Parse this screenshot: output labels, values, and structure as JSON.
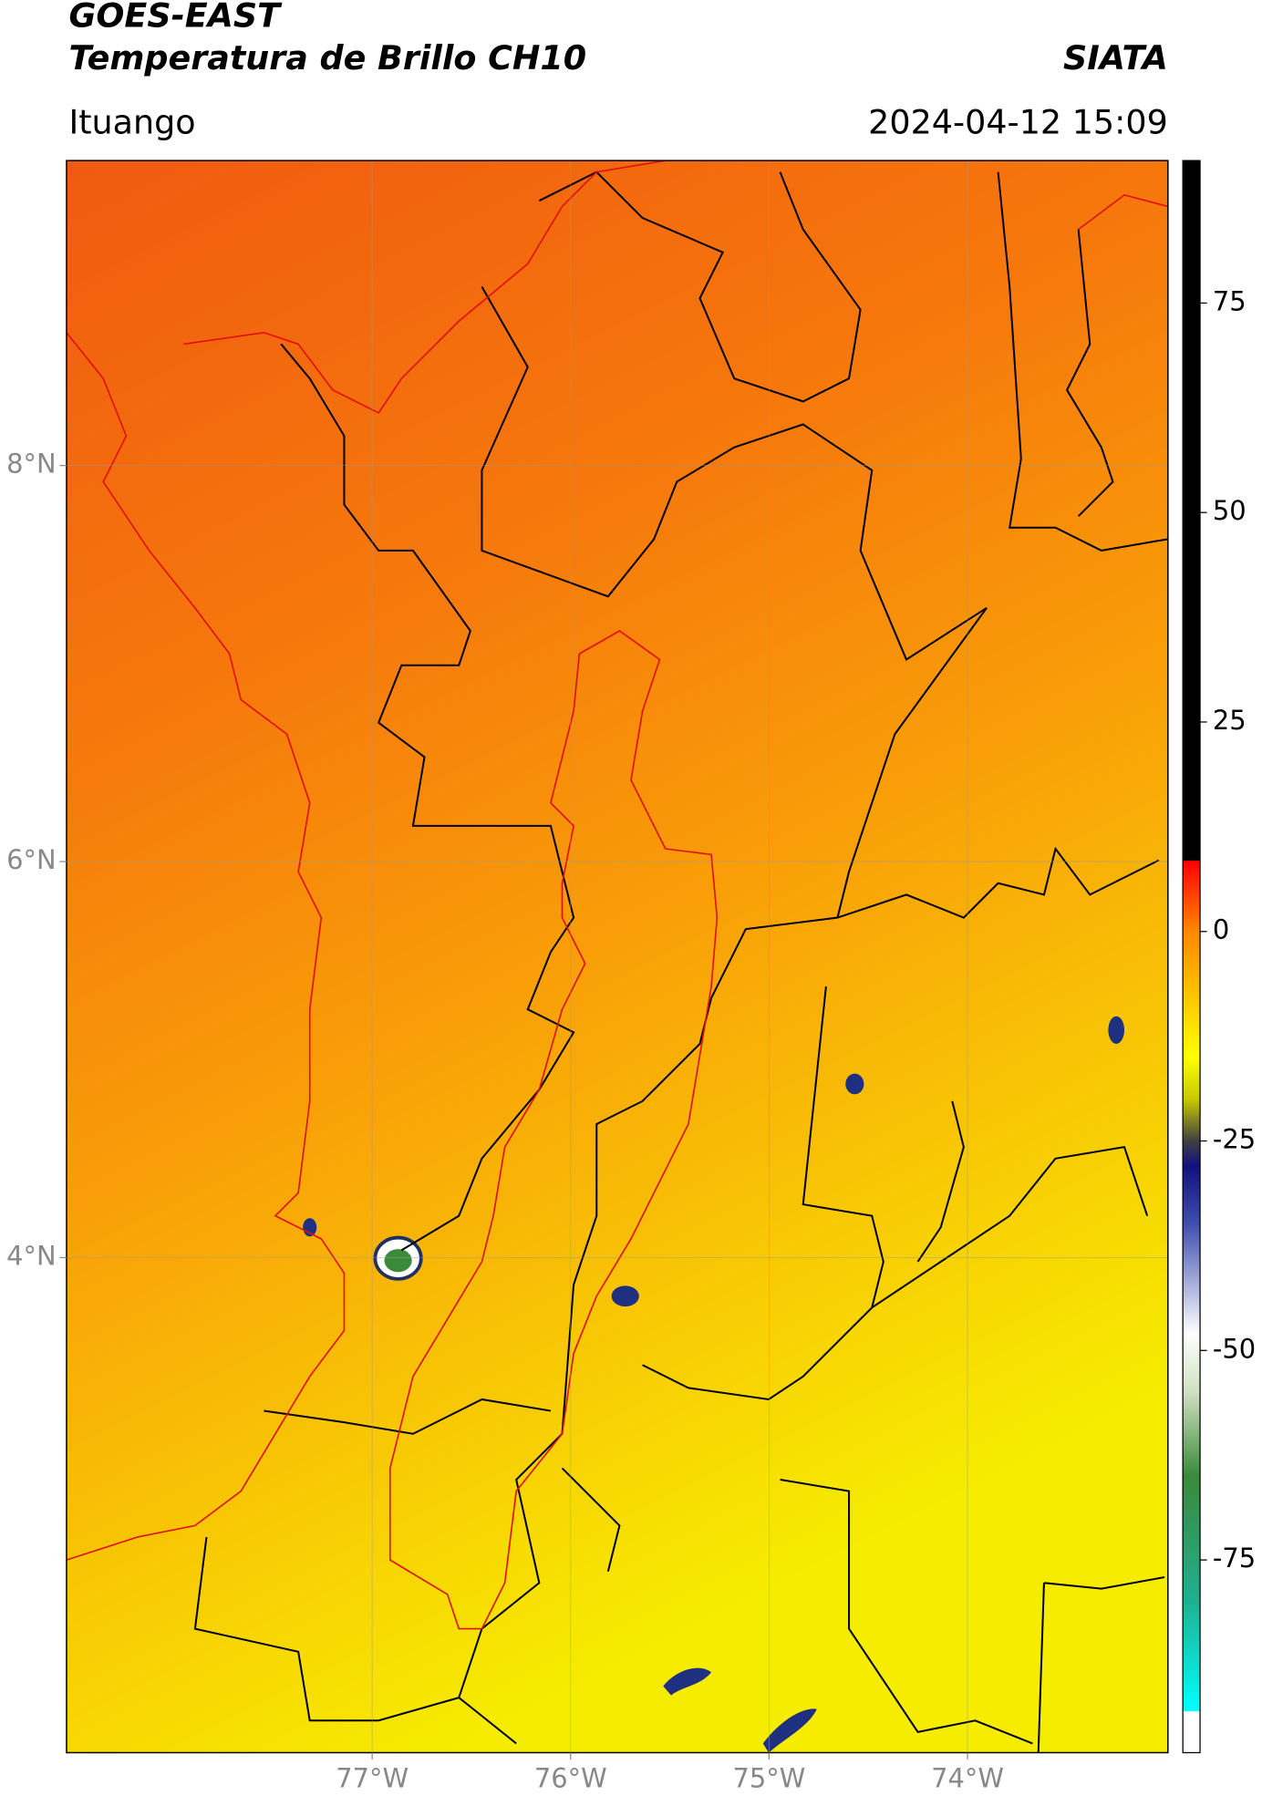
{
  "header": {
    "title_line1": "GOES-EAST",
    "title_line2": "Temperatura de Brillo CH10",
    "source": "SIATA",
    "location": "Ituango",
    "datetime": "2024-04-12 15:09"
  },
  "map": {
    "xlim": [
      -78.54,
      -72.99
    ],
    "ylim": [
      1.5,
      9.54
    ],
    "xticks": [
      {
        "value": -77,
        "label": "77°W"
      },
      {
        "value": -76,
        "label": "76°W"
      },
      {
        "value": -75,
        "label": "75°W"
      },
      {
        "value": -74,
        "label": "74°W"
      }
    ],
    "yticks": [
      {
        "value": 8,
        "label": "8°N"
      },
      {
        "value": 6,
        "label": "6°N"
      },
      {
        "value": 4,
        "label": "4°N"
      }
    ],
    "grid": true
  },
  "colorbar": {
    "lim": [
      -98,
      92
    ],
    "ticks": [
      75,
      50,
      25,
      0,
      -25,
      -50,
      -75
    ],
    "stops": [
      [
        92,
        "#000000"
      ],
      [
        8.5,
        "#000000"
      ],
      [
        8.4,
        "#ff0000"
      ],
      [
        0,
        "#ff8800"
      ],
      [
        -15,
        "#ffff00"
      ],
      [
        -20,
        "#c8c800"
      ],
      [
        -25,
        "#404040"
      ],
      [
        -28,
        "#101080"
      ],
      [
        -35,
        "#4050b0"
      ],
      [
        -48,
        "#ffffff"
      ],
      [
        -55,
        "#d0e0c0"
      ],
      [
        -65,
        "#3a8a3a"
      ],
      [
        -80,
        "#20b090"
      ],
      [
        -93,
        "#00ffff"
      ],
      [
        -93.1,
        "#ffffff"
      ],
      [
        -98,
        "#ffffff"
      ]
    ]
  }
}
